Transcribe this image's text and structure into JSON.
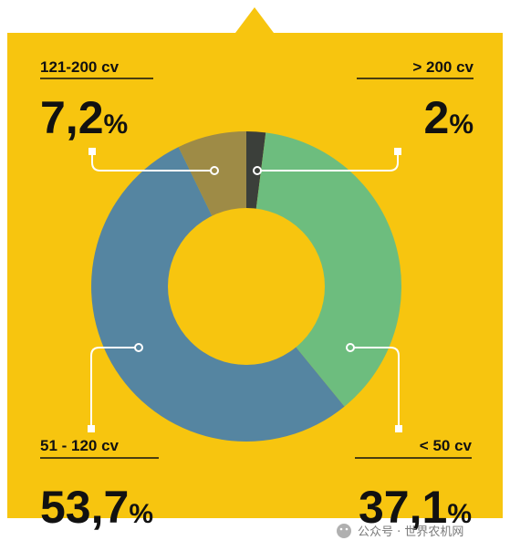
{
  "chart_data": {
    "type": "pie",
    "donut": true,
    "categories": [
      "> 200 cv",
      "< 50 cv",
      "51 - 120 cv",
      "121-200 cv"
    ],
    "values": [
      2,
      37.1,
      53.7,
      7.2
    ],
    "value_labels": [
      "2",
      "37,1",
      "53,7",
      "7,2"
    ],
    "value_unit": "%",
    "colors": [
      "#3b3f3a",
      "#6dbd7e",
      "#5585a1",
      "#9e8b46"
    ],
    "background": "#f7c50f",
    "start_angle_deg": 0,
    "direction": "clockwise"
  },
  "watermark": {
    "text": "公众号 · 世界农机网",
    "icon": "wechat-icon"
  }
}
